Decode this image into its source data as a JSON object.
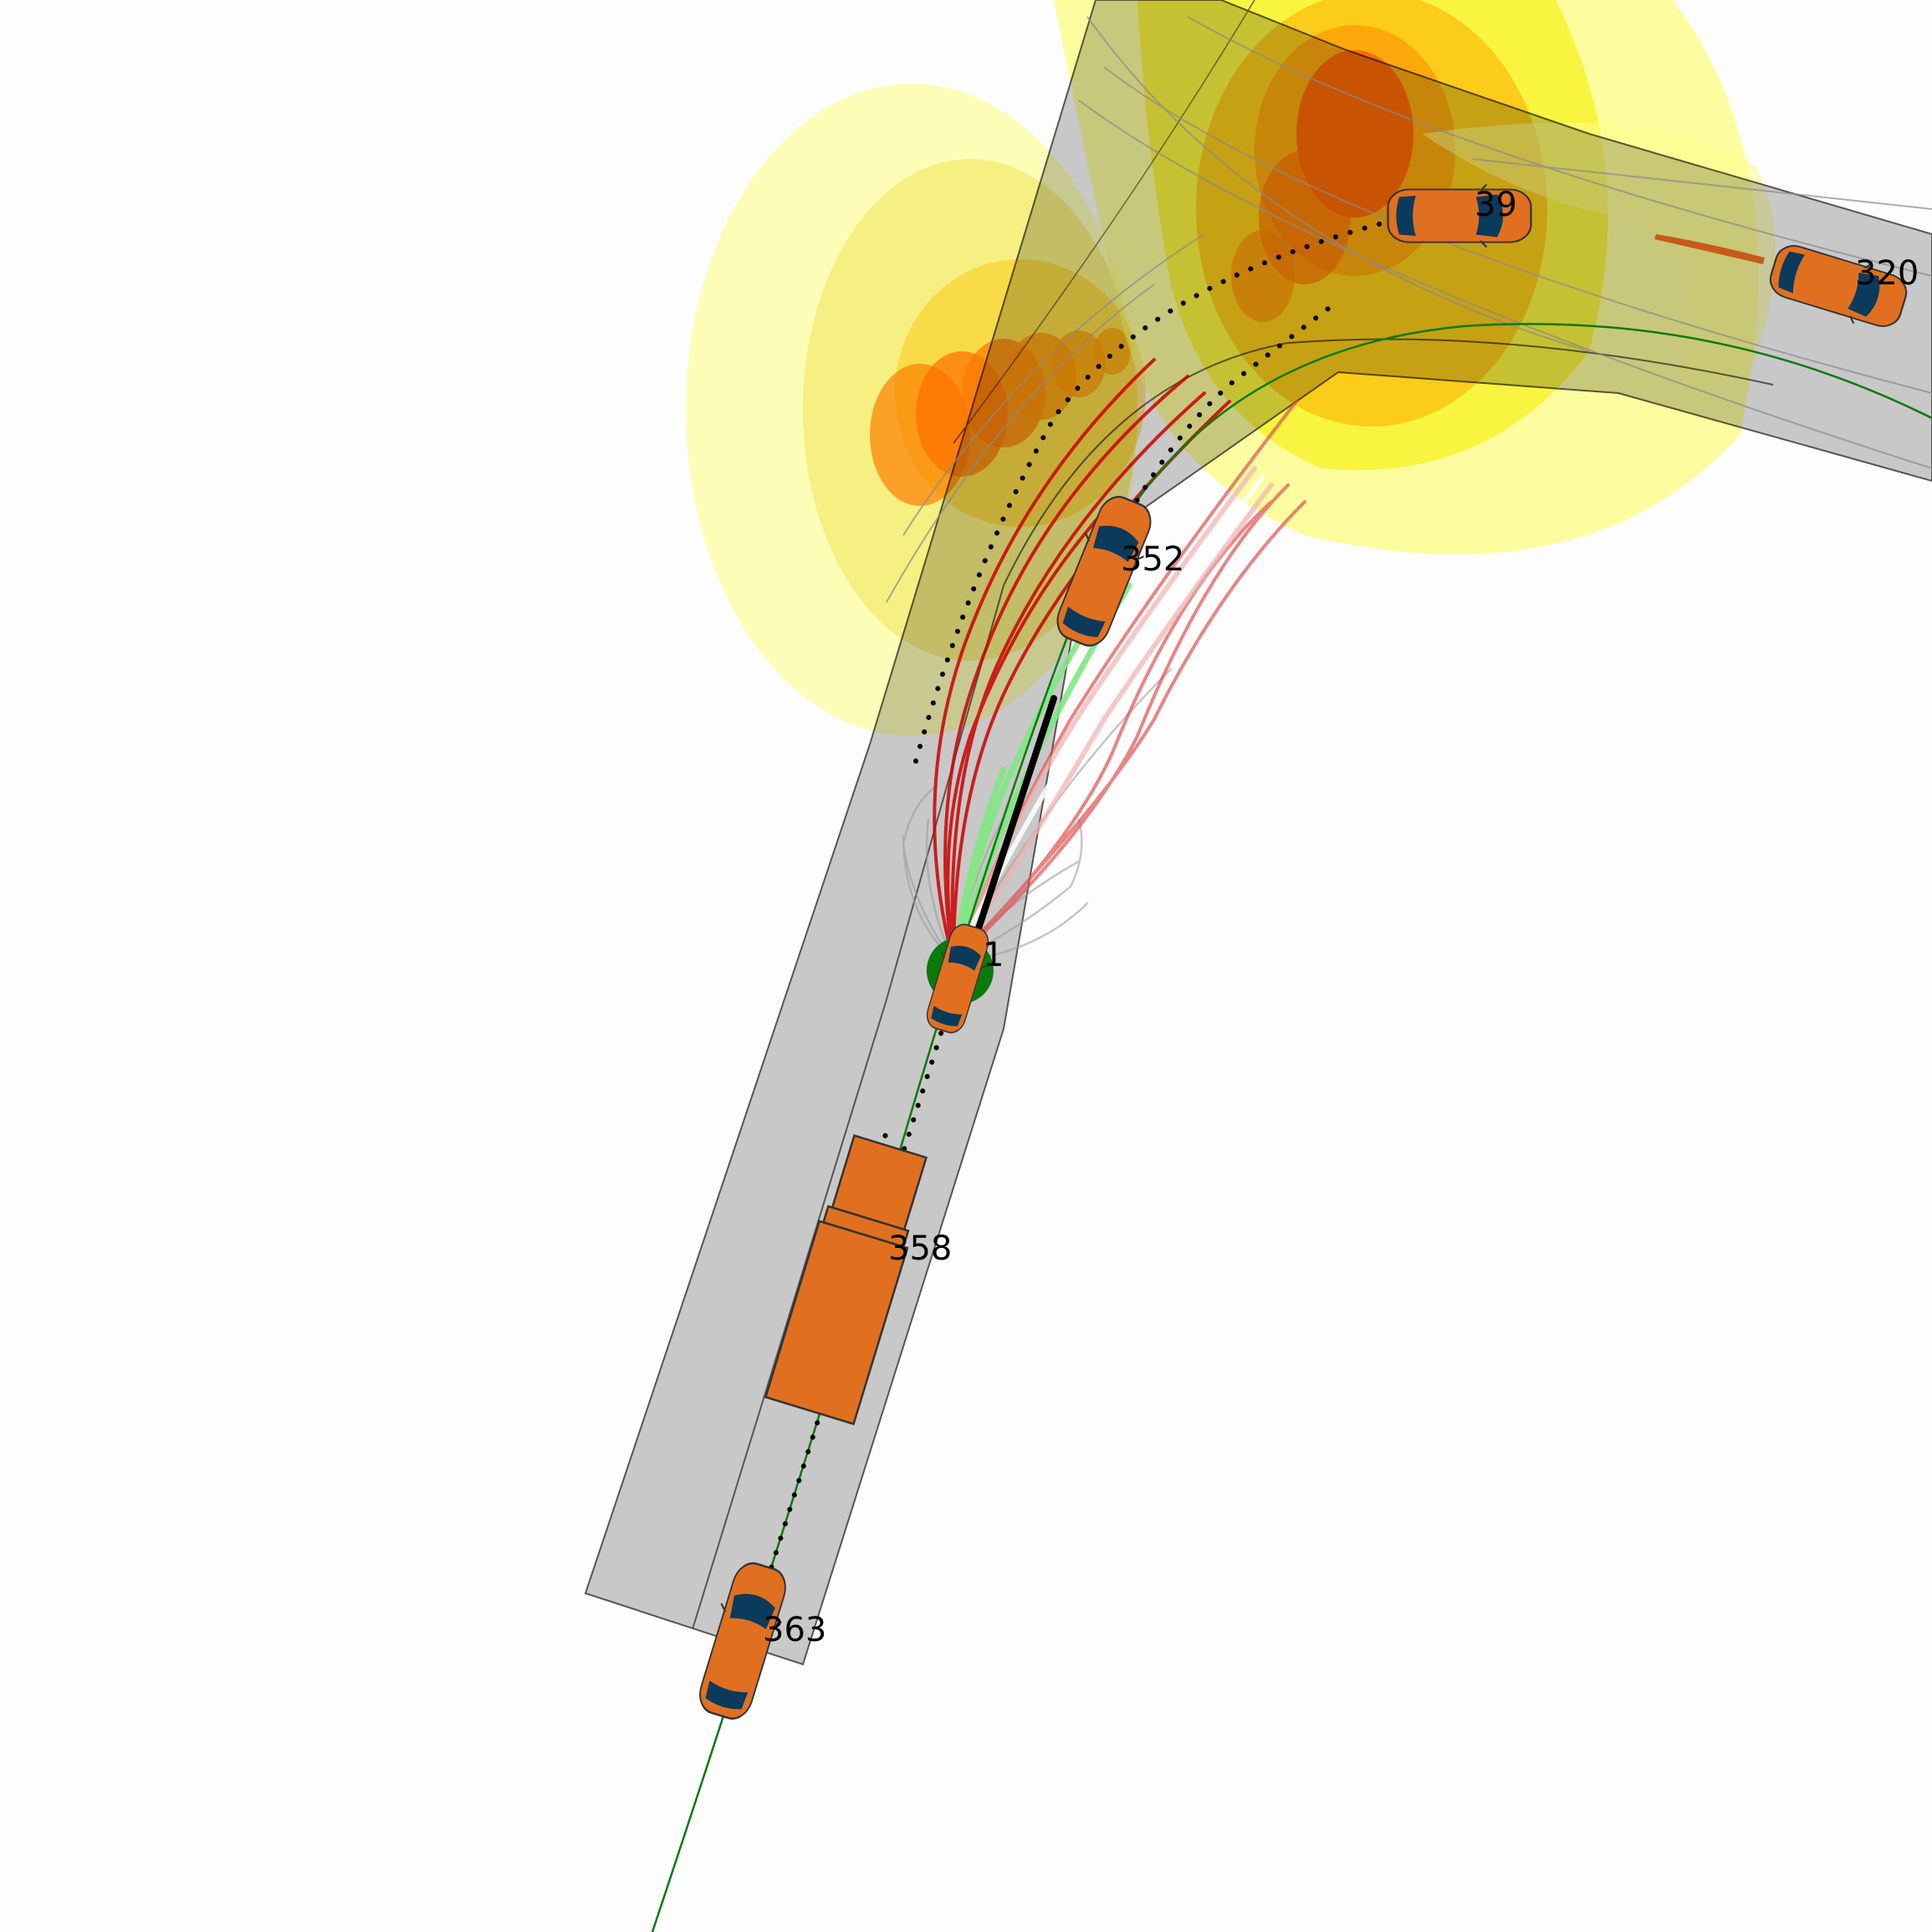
{
  "scene": {
    "vehicles": [
      {
        "id": "ego",
        "label": "1",
        "type": "car",
        "role": "ego"
      },
      {
        "id": "v39",
        "label": "39",
        "type": "car"
      },
      {
        "id": "v320",
        "label": "320",
        "type": "car"
      },
      {
        "id": "v352",
        "label": "352",
        "type": "car"
      },
      {
        "id": "v358",
        "label": "358",
        "type": "truck"
      },
      {
        "id": "v363",
        "label": "363",
        "type": "car"
      }
    ],
    "colors": {
      "background": "#fdfdfd",
      "road": "#c8c8c8",
      "road_edge": "#555555",
      "vehicle_body": "#e07020",
      "vehicle_window": "#0a3a5c",
      "reference_path": "#0a7a0a",
      "risk_low": "#ffff80",
      "risk_mid": "#ffb000",
      "risk_high": "#ff4000",
      "candidate_safe": "#7fe87f",
      "candidate_unsafe": "#cc0000",
      "candidate_neutral": "#9a9a9a",
      "chosen_path": "#000000"
    }
  }
}
